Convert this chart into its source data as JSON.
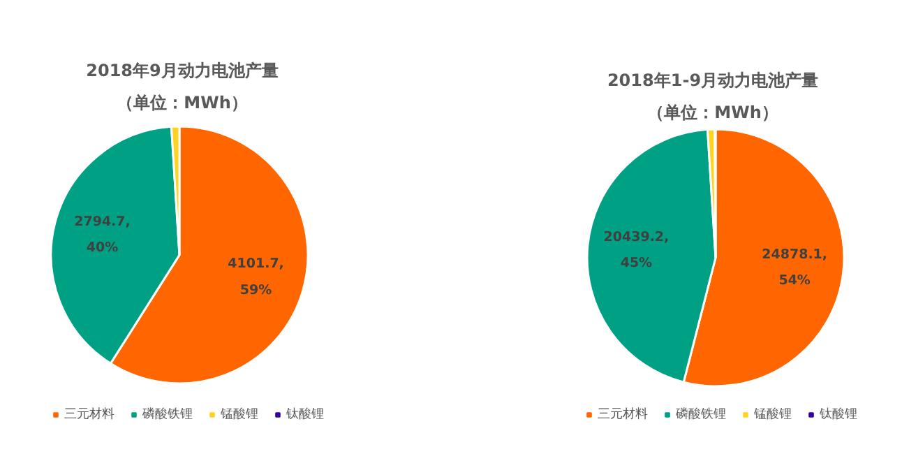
{
  "chart_data": [
    {
      "type": "pie",
      "title": "2018年9月动力电池产量",
      "subtitle": "（单位：MWh）",
      "categories": [
        "三元材料",
        "磷酸铁锂",
        "锰酸锂",
        "钛酸锂"
      ],
      "values": [
        59,
        40,
        1,
        0
      ],
      "colors": [
        "#ff6600",
        "#00a085",
        "#ffd320",
        "#3300a0"
      ],
      "value_labels": [
        "4101.7,\n59%",
        "2794.7,\n40%",
        null,
        null
      ],
      "legend": "bottom"
    },
    {
      "type": "pie",
      "title": "2018年1-9月动力电池产量",
      "subtitle": "（单位：MWh）",
      "categories": [
        "三元材料",
        "磷酸铁锂",
        "锰酸锂",
        "钛酸锂"
      ],
      "values": [
        54,
        45,
        0.9,
        0.1
      ],
      "colors": [
        "#ff6600",
        "#00a085",
        "#ffd320",
        "#3300a0"
      ],
      "value_labels": [
        "24878.1,\n54%",
        "20439.2,\n45%",
        null,
        null
      ],
      "legend": "bottom"
    }
  ]
}
